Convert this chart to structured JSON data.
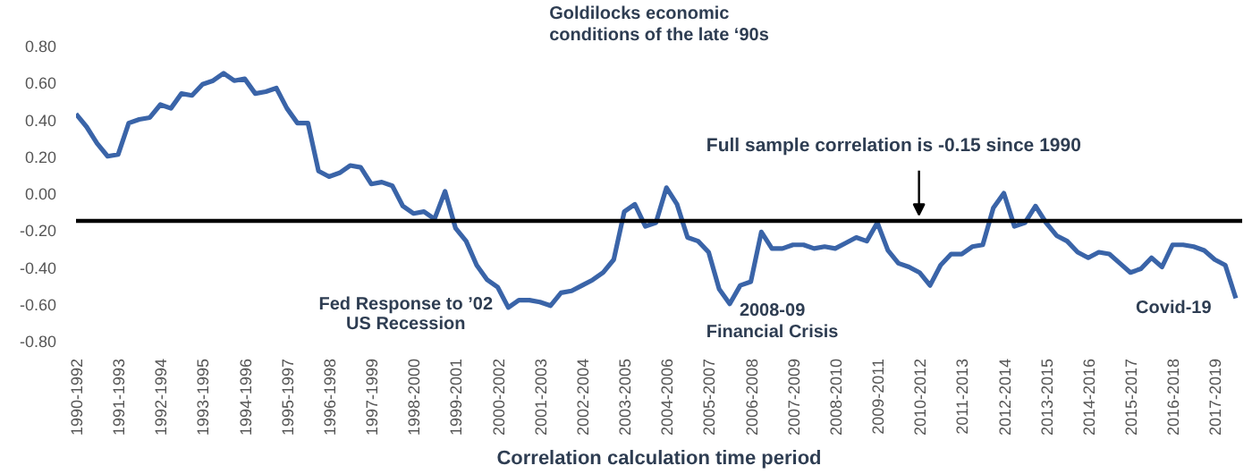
{
  "chart_data": {
    "type": "line",
    "xlabel": "Correlation calculation time period",
    "categories": [
      "1990-1992",
      null,
      null,
      null,
      "1991-1993",
      null,
      null,
      null,
      "1992-1994",
      null,
      null,
      null,
      "1993-1995",
      null,
      null,
      null,
      "1994-1996",
      null,
      null,
      null,
      "1995-1997",
      null,
      null,
      null,
      "1996-1998",
      null,
      null,
      null,
      "1997-1999",
      null,
      null,
      null,
      "1998-2000",
      null,
      null,
      null,
      "1999-2001",
      null,
      null,
      null,
      "2000-2002",
      null,
      null,
      null,
      "2001-2003",
      null,
      null,
      null,
      "2002-2004",
      null,
      null,
      null,
      "2003-2005",
      null,
      null,
      null,
      "2004-2006",
      null,
      null,
      null,
      "2005-2007",
      null,
      null,
      null,
      "2006-2008",
      null,
      null,
      null,
      "2007-2009",
      null,
      null,
      null,
      "2008-2010",
      null,
      null,
      null,
      "2009-2011",
      null,
      null,
      null,
      "2010-2012",
      null,
      null,
      null,
      "2011-2013",
      null,
      null,
      null,
      "2012-2014",
      null,
      null,
      null,
      "2013-2015",
      null,
      null,
      null,
      "2014-2016",
      null,
      null,
      null,
      "2015-2017",
      null,
      null,
      null,
      "2016-2018",
      null,
      null,
      null,
      "2017-2019",
      null,
      null
    ],
    "series": [
      {
        "color": "#3a64a8",
        "values": [
          0.43,
          0.36,
          0.27,
          0.2,
          0.21,
          0.38,
          0.4,
          0.41,
          0.48,
          0.46,
          0.54,
          0.53,
          0.59,
          0.61,
          0.65,
          0.61,
          0.62,
          0.54,
          0.55,
          0.57,
          0.46,
          0.38,
          0.38,
          0.12,
          0.09,
          0.11,
          0.15,
          0.14,
          0.05,
          0.06,
          0.04,
          -0.07,
          -0.11,
          -0.1,
          -0.14,
          0.01,
          -0.19,
          -0.26,
          -0.39,
          -0.47,
          -0.51,
          -0.62,
          -0.58,
          -0.58,
          -0.59,
          -0.61,
          -0.54,
          -0.53,
          -0.5,
          -0.47,
          -0.43,
          -0.36,
          -0.1,
          -0.06,
          -0.18,
          -0.16,
          0.03,
          -0.06,
          -0.24,
          -0.26,
          -0.32,
          -0.52,
          -0.6,
          -0.5,
          -0.48,
          -0.21,
          -0.3,
          -0.3,
          -0.28,
          -0.28,
          -0.3,
          -0.29,
          -0.3,
          -0.27,
          -0.24,
          -0.26,
          -0.16,
          -0.31,
          -0.38,
          -0.4,
          -0.43,
          -0.5,
          -0.39,
          -0.33,
          -0.33,
          -0.29,
          -0.28,
          -0.08,
          0.0,
          -0.18,
          -0.16,
          -0.07,
          -0.16,
          -0.23,
          -0.26,
          -0.32,
          -0.35,
          -0.32,
          -0.33,
          -0.38,
          -0.43,
          -0.41,
          -0.35,
          -0.4,
          -0.28,
          -0.28,
          -0.29,
          -0.31,
          -0.36,
          -0.39,
          -0.57
        ]
      }
    ],
    "ylim": [
      -0.8,
      0.8
    ],
    "yticks": [
      {
        "value": 0.8,
        "label": "0.80"
      },
      {
        "value": 0.6,
        "label": "0.60"
      },
      {
        "value": 0.4,
        "label": "0.40"
      },
      {
        "value": 0.2,
        "label": "0.20"
      },
      {
        "value": 0,
        "label": "0.00"
      },
      {
        "value": -0.2,
        "label": "-0.20"
      },
      {
        "value": -0.4,
        "label": "-0.40"
      },
      {
        "value": -0.6,
        "label": "-0.60"
      },
      {
        "value": -0.8,
        "label": "-0.80"
      }
    ],
    "ref_lines": [
      {
        "axis": "y",
        "value": -0.15,
        "label": "Full sample correlation is -0.15 since 1990",
        "color": "#000000"
      }
    ],
    "annotations": [
      "Goldilocks economic\nconditions of the late ‘90s",
      {
        "text": "Fed Response to ’02\nUS Recession",
        "x": "2001-2003",
        "y": -0.59
      },
      {
        "text": "2008-09\nFinancial Crisis",
        "x": "2006-2008",
        "y": -0.48
      },
      {
        "text": "Covid-19",
        "x": "2017-2019",
        "y": -0.36
      }
    ],
    "grid": false,
    "marker": "none",
    "line_style": "solid"
  }
}
